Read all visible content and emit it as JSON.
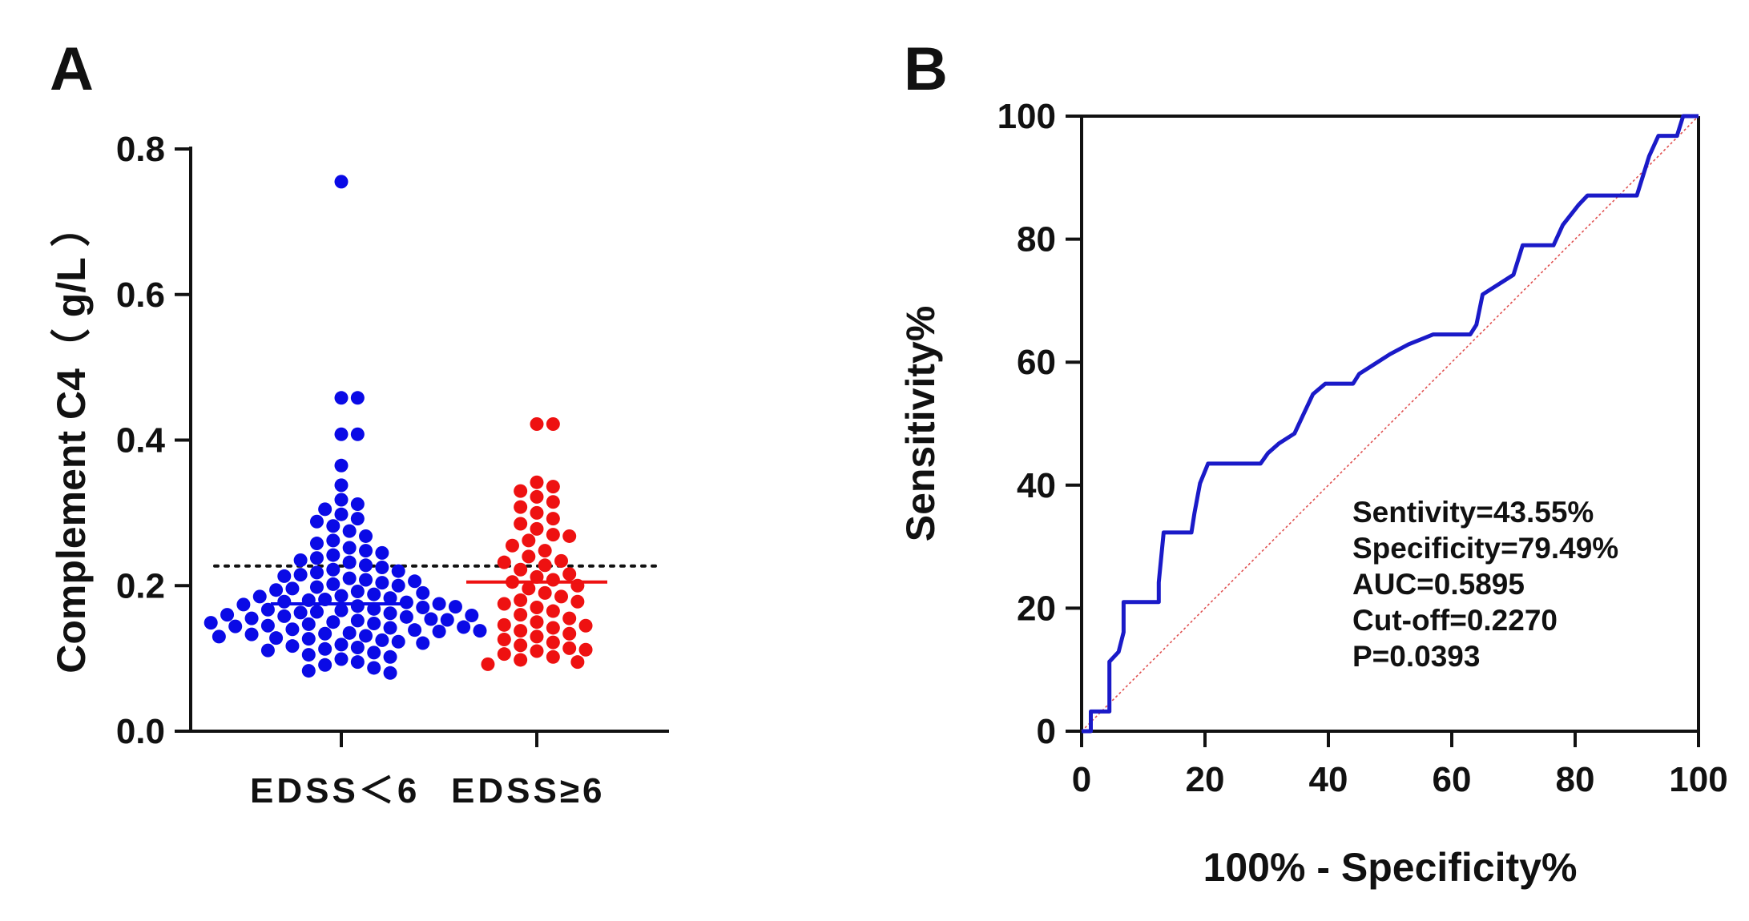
{
  "chart_data": [
    {
      "panel": "A",
      "type": "scatter",
      "ylabel": "Complement C4（ g/L ）",
      "ylim": [
        0,
        0.8
      ],
      "yticks": [
        "0.0",
        "0.2",
        "0.4",
        "0.6",
        "0.8"
      ],
      "categories": [
        "EDSS＜6",
        "EDSS≥6"
      ],
      "cutoff_line": 0.227,
      "colors": {
        "EDSS＜6": "#0a0ae6",
        "EDSS≥6": "#ee1111"
      },
      "series": [
        {
          "name": "EDSS＜6",
          "median": 0.175,
          "values": [
            0.755,
            0.458,
            0.458,
            0.408,
            0.408,
            0.365,
            0.338,
            0.318,
            0.312,
            0.305,
            0.298,
            0.292,
            0.288,
            0.282,
            0.275,
            0.268,
            0.262,
            0.258,
            0.252,
            0.248,
            0.245,
            0.242,
            0.238,
            0.235,
            0.232,
            0.228,
            0.225,
            0.222,
            0.22,
            0.218,
            0.215,
            0.213,
            0.21,
            0.208,
            0.206,
            0.204,
            0.202,
            0.2,
            0.198,
            0.196,
            0.194,
            0.192,
            0.19,
            0.188,
            0.186,
            0.185,
            0.183,
            0.181,
            0.18,
            0.178,
            0.177,
            0.175,
            0.174,
            0.172,
            0.171,
            0.17,
            0.168,
            0.167,
            0.166,
            0.164,
            0.163,
            0.162,
            0.16,
            0.159,
            0.158,
            0.157,
            0.155,
            0.154,
            0.153,
            0.152,
            0.15,
            0.149,
            0.148,
            0.147,
            0.145,
            0.144,
            0.143,
            0.142,
            0.14,
            0.139,
            0.138,
            0.137,
            0.135,
            0.134,
            0.133,
            0.131,
            0.13,
            0.128,
            0.127,
            0.125,
            0.123,
            0.121,
            0.119,
            0.117,
            0.115,
            0.113,
            0.111,
            0.108,
            0.105,
            0.102,
            0.099,
            0.095,
            0.091,
            0.087,
            0.083,
            0.08
          ]
        },
        {
          "name": "EDSS≥6",
          "median": 0.205,
          "values": [
            0.422,
            0.422,
            0.342,
            0.336,
            0.33,
            0.322,
            0.315,
            0.308,
            0.3,
            0.292,
            0.285,
            0.278,
            0.27,
            0.262,
            0.255,
            0.248,
            0.24,
            0.234,
            0.228,
            0.222,
            0.216,
            0.212,
            0.208,
            0.205,
            0.2,
            0.196,
            0.19,
            0.185,
            0.18,
            0.175,
            0.17,
            0.165,
            0.16,
            0.155,
            0.15,
            0.146,
            0.142,
            0.138,
            0.134,
            0.13,
            0.126,
            0.122,
            0.118,
            0.114,
            0.11,
            0.106,
            0.102,
            0.098,
            0.095,
            0.092,
            0.112,
            0.145,
            0.178,
            0.232,
            0.268
          ]
        }
      ]
    },
    {
      "panel": "B",
      "type": "line",
      "xlabel": "100% - Specificity%",
      "ylabel": "Sensitivity%",
      "xlim": [
        0,
        100
      ],
      "ylim": [
        0,
        100
      ],
      "xticks": [
        "0",
        "20",
        "40",
        "60",
        "80",
        "100"
      ],
      "yticks": [
        "0",
        "20",
        "40",
        "60",
        "80",
        "100"
      ],
      "colors": {
        "roc": "#1a1ac8",
        "reference": "#e05050"
      },
      "roc_points": [
        [
          0,
          0
        ],
        [
          1.5,
          0
        ],
        [
          1.5,
          3.2
        ],
        [
          4.5,
          3.2
        ],
        [
          4.5,
          11.3
        ],
        [
          6,
          12.9
        ],
        [
          6.8,
          16.1
        ],
        [
          6.8,
          21
        ],
        [
          12.5,
          21
        ],
        [
          12.5,
          24.2
        ],
        [
          13.3,
          32.3
        ],
        [
          17.8,
          32.3
        ],
        [
          18.3,
          35.5
        ],
        [
          19.2,
          40.3
        ],
        [
          20.5,
          43.5
        ],
        [
          29,
          43.5
        ],
        [
          30.2,
          45.2
        ],
        [
          32,
          46.8
        ],
        [
          34.5,
          48.4
        ],
        [
          36,
          51.6
        ],
        [
          37.5,
          54.8
        ],
        [
          39.5,
          56.5
        ],
        [
          44,
          56.5
        ],
        [
          45,
          58.1
        ],
        [
          47.5,
          59.7
        ],
        [
          50,
          61.3
        ],
        [
          53,
          62.9
        ],
        [
          57,
          64.5
        ],
        [
          60,
          64.5
        ],
        [
          63,
          64.5
        ],
        [
          64,
          66.1
        ],
        [
          65,
          71
        ],
        [
          67.5,
          72.6
        ],
        [
          70,
          74.2
        ],
        [
          71.5,
          79
        ],
        [
          76.5,
          79
        ],
        [
          78,
          82.3
        ],
        [
          80.5,
          85.5
        ],
        [
          82,
          87.1
        ],
        [
          90,
          87.1
        ],
        [
          91,
          90.3
        ],
        [
          92,
          93.5
        ],
        [
          93.5,
          96.8
        ],
        [
          96.5,
          96.8
        ],
        [
          97.5,
          100
        ],
        [
          100,
          100
        ]
      ],
      "annotations": [
        "Sentivity=43.55%",
        "Specificity=79.49%",
        "AUC=0.5895",
        "Cut-off=0.2270",
        "P=0.0393"
      ]
    }
  ],
  "panel_labels": {
    "a": "A",
    "b": "B"
  }
}
